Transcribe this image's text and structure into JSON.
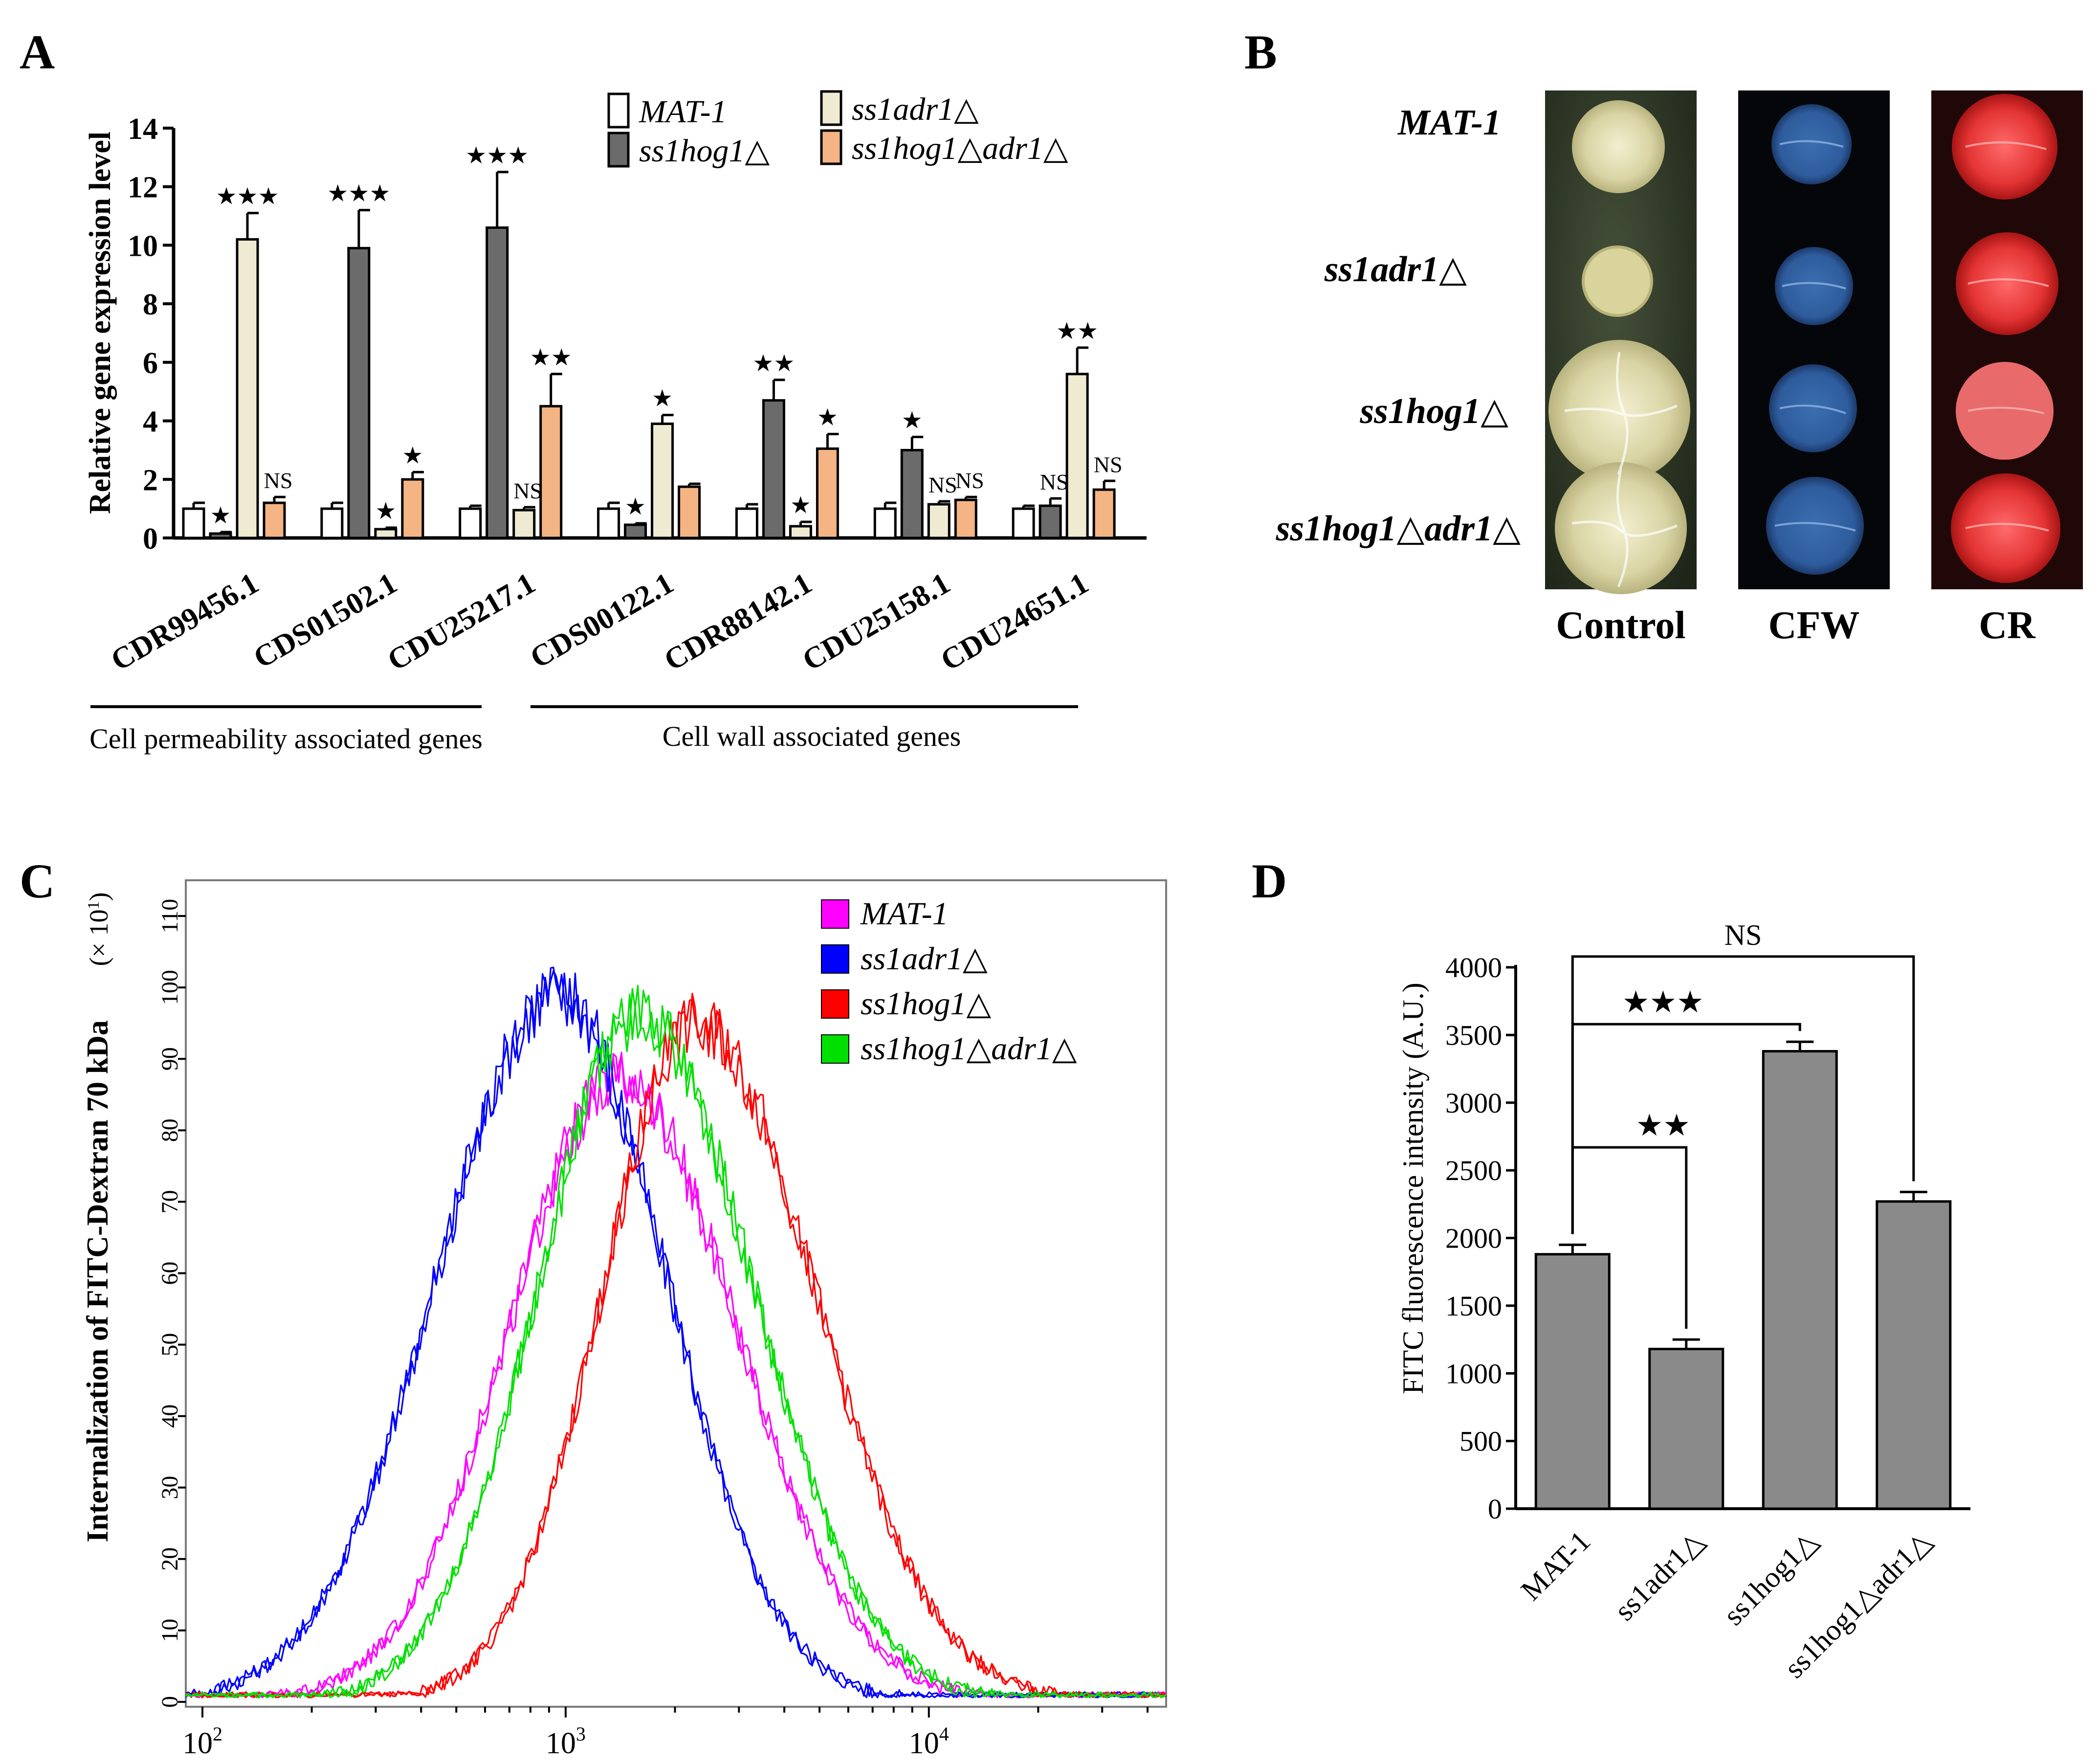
{
  "panels": {
    "A": {
      "letter": "A"
    },
    "B": {
      "letter": "B"
    },
    "C": {
      "letter": "C"
    },
    "D": {
      "letter": "D"
    }
  },
  "colors": {
    "mat1": "#ffffff",
    "ss1hog1": "#6b6b6b",
    "ss1adr1": "#efebd2",
    "double": "#f4b483",
    "c_mat1": "#ff00ff",
    "c_ss1adr1": "#0000ff",
    "c_ss1hog1": "#ff0000",
    "c_double": "#00e000",
    "d_bar": "#8a8a8a"
  },
  "star_glyph": "★",
  "panelB": {
    "strains": [
      "MAT-1",
      "ss1adr1△",
      "ss1hog1△",
      "ss1hog1△adr1△"
    ],
    "columns": [
      "Control",
      "CFW",
      "CR"
    ]
  },
  "chart_data": [
    {
      "id": "A",
      "type": "bar",
      "title": "",
      "ylabel": "Relative gene expression level",
      "ylim": [
        0,
        14
      ],
      "yticks": [
        "0",
        "2",
        "4",
        "6",
        "8",
        "10",
        "12",
        "14"
      ],
      "categories": [
        "CDR99456.1",
        "CDS01502.1",
        "CDU25217.1",
        "CDS00122.1",
        "CDR88142.1",
        "CDU25158.1",
        "CDU24651.1"
      ],
      "series": [
        {
          "name": "MAT-1",
          "values": [
            1.0,
            1.0,
            1.0,
            1.0,
            1.0,
            1.0,
            1.0
          ],
          "errors": [
            0.2,
            0.2,
            0.1,
            0.2,
            0.15,
            0.2,
            0.1
          ]
        },
        {
          "name": "ss1hog1△",
          "values": [
            0.15,
            9.9,
            10.6,
            0.45,
            4.7,
            3.0,
            1.1
          ],
          "errors": [
            0.05,
            1.3,
            1.9,
            0.05,
            0.7,
            0.45,
            0.25
          ]
        },
        {
          "name": "ss1adr1△",
          "values": [
            10.2,
            0.3,
            0.95,
            3.9,
            0.4,
            1.15,
            5.6
          ],
          "errors": [
            0.9,
            0.05,
            0.1,
            0.3,
            0.15,
            0.1,
            0.9
          ]
        },
        {
          "name": "ss1hog1△adr1△",
          "values": [
            1.2,
            2.0,
            4.5,
            1.75,
            3.05,
            1.3,
            1.65
          ],
          "errors": [
            0.2,
            0.25,
            1.1,
            0.1,
            0.5,
            0.1,
            0.3
          ]
        }
      ],
      "annotations": [
        [
          "",
          "★",
          "★★★",
          "NS"
        ],
        [
          "",
          "★★★",
          "★",
          "★"
        ],
        [
          "",
          "★★★",
          "NS",
          "★★"
        ],
        [
          "",
          "★",
          "★",
          ""
        ],
        [
          "",
          "★★",
          "★",
          "★"
        ],
        [
          "",
          "★",
          "NS",
          "NS"
        ],
        [
          "",
          "NS",
          "★★",
          "NS"
        ]
      ],
      "groups": [
        {
          "label": "Cell permeability associated genes"
        },
        {
          "label": "Cell wall associated genes"
        }
      ],
      "legend": [
        "MAT-1",
        "ss1hog1△",
        "ss1adr1△",
        "ss1hog1△adr1△"
      ]
    },
    {
      "id": "C",
      "type": "line",
      "ylabel": "Internalization of FITC-Dextran 70 kDa",
      "yunit": "(× 10",
      "yunit_sup": "1",
      "yunit_close": ")",
      "ylim": [
        0,
        115
      ],
      "yticks": [
        "0",
        "10",
        "20",
        "30",
        "40",
        "50",
        "60",
        "70",
        "80",
        "90",
        "100",
        "110"
      ],
      "xscale": "log",
      "xlim": [
        90,
        45000
      ],
      "xticks": [
        {
          "base": "10",
          "exp": "2",
          "value": 100
        },
        {
          "base": "10",
          "exp": "3",
          "value": 1000
        },
        {
          "base": "10",
          "exp": "4",
          "value": 10000
        }
      ],
      "legend": [
        "MAT-1",
        "ss1adr1△",
        "ss1hog1△",
        "ss1hog1△adr1△"
      ],
      "series": [
        {
          "name": "MAT-1",
          "peak_x": 1400,
          "peak_y": 87,
          "width": 0.3,
          "skew_right": 1.08
        },
        {
          "name": "ss1adr1△",
          "peak_x": 950,
          "peak_y": 99,
          "width": 0.33,
          "skew_right": 0.9
        },
        {
          "name": "ss1hog1△",
          "peak_x": 2300,
          "peak_y": 95,
          "width": 0.26,
          "skew_right": 1.25
        },
        {
          "name": "ss1hog1△adr1△",
          "peak_x": 1600,
          "peak_y": 96,
          "width": 0.28,
          "skew_right": 1.12
        }
      ]
    },
    {
      "id": "D",
      "type": "bar",
      "ylabel": "FITC fluorescence intensity (A.U.)",
      "ylim": [
        0,
        4000
      ],
      "yticks": [
        "0",
        "500",
        "1000",
        "1500",
        "2000",
        "2500",
        "3000",
        "3500",
        "4000"
      ],
      "categories": [
        "MAT-1",
        "ss1adr1△",
        "ss1hog1△",
        "ss1hog1△adr1△"
      ],
      "values": [
        1880,
        1180,
        3380,
        2270
      ],
      "errors": [
        70,
        70,
        70,
        70
      ],
      "brackets": [
        {
          "from": 0,
          "to": 1,
          "label": "★★",
          "level": 2670
        },
        {
          "from": 0,
          "to": 2,
          "label": "★★★",
          "level": 3580
        },
        {
          "from": 0,
          "to": 3,
          "label": "NS",
          "level": 4080
        }
      ]
    }
  ]
}
